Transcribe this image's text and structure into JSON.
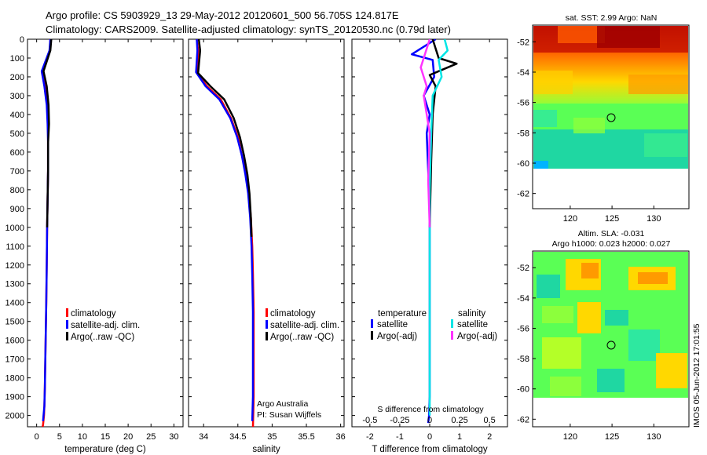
{
  "header": {
    "title_line1": "Argo profile: CS 5903929_13 29-May-2012 20120601_500 56.705S 124.817E",
    "title_line2": "Climatology: CARS2009. Satellite-adjusted climatology: synTS_20120530.nc (0.79d later)"
  },
  "colors": {
    "climatology": "#ff0000",
    "satellite": "#0000ff",
    "argo": "#000000",
    "sal_satellite": "#00e5e5",
    "sal_argo": "#ff33ff"
  },
  "depth_ticks": [
    "0",
    "100",
    "200",
    "300",
    "400",
    "500",
    "600",
    "700",
    "800",
    "900",
    "1000",
    "1100",
    "1200",
    "1300",
    "1400",
    "1500",
    "1600",
    "1700",
    "1800",
    "1900",
    "2000"
  ],
  "panels": {
    "temperature": {
      "xlabel": "temperature (deg C)",
      "xticks": [
        "0",
        "5",
        "10",
        "15",
        "20",
        "25",
        "30"
      ],
      "legend": [
        "climatology",
        "satellite-adj. clim.",
        "Argo(..raw -QC)"
      ]
    },
    "salinity": {
      "xlabel": "salinity",
      "xticks": [
        "34",
        "34.5",
        "35",
        "35.5",
        "36"
      ],
      "legend": [
        "climatology",
        "satellite-adj. clim.",
        "Argo(..raw -QC)"
      ],
      "credit1": "Argo Australia",
      "credit2": "PI: Susan Wijffels"
    },
    "difference": {
      "xlabel": "T difference from climatology",
      "xticks": [
        "-2",
        "-1",
        "0",
        "1",
        "2"
      ],
      "s_label": "S difference from climatology",
      "s_ticks": [
        "-0.5",
        "-0.25",
        "0",
        "0.25",
        "0.5"
      ],
      "legend_temperature_title": "temperature",
      "legend_salinity_title": "salinity",
      "legend_temperature": [
        "satellite",
        "Argo(-adj)"
      ],
      "legend_salinity": [
        "satellite",
        "Argo(-adj)"
      ]
    }
  },
  "maps": {
    "sst_title": "sat. SST: 2.99 Argo: NaN",
    "sla_title1": "Altim. SLA: -0.031",
    "sla_title2": "Argo h1000: 0.023 h2000: 0.027",
    "yticks": [
      "-52",
      "-54",
      "-56",
      "-58",
      "-60",
      "-62"
    ],
    "xticks": [
      "120",
      "125",
      "130"
    ]
  },
  "footer": {
    "stamp": "IMOS 05-Jun-2012 17:01:55"
  },
  "chart_data": [
    {
      "type": "line",
      "name": "temperature-profile",
      "xlabel": "temperature (deg C)",
      "ylabel": "",
      "xlim": [
        -2,
        32
      ],
      "ylim": [
        2060,
        0
      ],
      "series": [
        {
          "name": "climatology",
          "color": "#ff0000",
          "x": [
            3.0,
            2.9,
            1.2,
            1.8,
            2.3,
            2.5,
            2.5,
            2.5,
            2.4,
            2.3,
            2.2,
            2.1,
            2.0,
            1.9,
            1.8,
            1.7,
            1.6,
            1.4,
            1.3
          ],
          "y": [
            0,
            60,
            180,
            250,
            350,
            450,
            550,
            700,
            850,
            1000,
            1200,
            1400,
            1550,
            1700,
            1850,
            1950,
            2000,
            2050,
            2060
          ]
        },
        {
          "name": "satellite-adj. clim.",
          "color": "#0000ff",
          "x": [
            3.0,
            2.8,
            1.1,
            1.7,
            2.2,
            2.4,
            2.5,
            2.5,
            2.4,
            2.3,
            2.2,
            2.1,
            2.0,
            1.9,
            1.8,
            1.7,
            1.5,
            1.4
          ],
          "y": [
            0,
            60,
            170,
            250,
            350,
            450,
            550,
            700,
            850,
            1000,
            1200,
            1400,
            1550,
            1700,
            1850,
            1950,
            2000,
            2030
          ]
        },
        {
          "name": "Argo(..raw -QC)",
          "color": "#000000",
          "x": [
            3.2,
            3.0,
            1.5,
            2.2,
            2.6,
            2.7,
            2.5,
            2.5,
            2.4,
            2.3
          ],
          "y": [
            0,
            60,
            170,
            250,
            350,
            450,
            550,
            700,
            850,
            1000
          ]
        }
      ]
    },
    {
      "type": "line",
      "name": "salinity-profile",
      "xlabel": "salinity",
      "ylabel": "",
      "xlim": [
        33.78,
        36.05
      ],
      "ylim": [
        2060,
        0
      ],
      "series": [
        {
          "name": "climatology",
          "color": "#ff0000",
          "x": [
            33.9,
            33.92,
            33.9,
            34.05,
            34.25,
            34.4,
            34.5,
            34.56,
            34.62,
            34.66,
            34.69,
            34.71,
            34.72,
            34.73,
            34.73,
            34.73,
            34.72
          ],
          "y": [
            0,
            60,
            180,
            250,
            320,
            420,
            520,
            620,
            720,
            820,
            950,
            1100,
            1250,
            1450,
            1700,
            1900,
            2060
          ]
        },
        {
          "name": "satellite-adj. clim.",
          "color": "#0000ff",
          "x": [
            33.9,
            33.91,
            33.89,
            34.03,
            34.23,
            34.39,
            34.49,
            34.56,
            34.61,
            34.65,
            34.68,
            34.7,
            34.71,
            34.72,
            34.72,
            34.72,
            34.71
          ],
          "y": [
            0,
            60,
            175,
            250,
            320,
            420,
            520,
            620,
            720,
            820,
            950,
            1100,
            1250,
            1450,
            1700,
            1900,
            2030
          ]
        },
        {
          "name": "Argo(..raw -QC)",
          "color": "#000000",
          "x": [
            33.93,
            33.95,
            33.92,
            34.1,
            34.3,
            34.44,
            34.53,
            34.59,
            34.64,
            34.67,
            34.69,
            34.7
          ],
          "y": [
            0,
            60,
            180,
            250,
            320,
            420,
            520,
            620,
            720,
            820,
            950,
            1050
          ]
        }
      ]
    },
    {
      "type": "line",
      "name": "difference-profile",
      "xlabel": "T difference from climatology",
      "ylabel": "",
      "xlim": [
        -2.6,
        2.6
      ],
      "ylim": [
        2060,
        0
      ],
      "series": [
        {
          "name": "satellite",
          "group": "temperature",
          "color": "#0000ff",
          "x": [
            0.2,
            -0.6,
            0.1,
            0.15,
            -0.2,
            0.0,
            -0.1,
            -0.05,
            0.0,
            0.0,
            0.0,
            0.0,
            0.0,
            0.0,
            -0.02,
            -0.05
          ],
          "y": [
            0,
            80,
            110,
            200,
            300,
            400,
            500,
            700,
            900,
            1100,
            1300,
            1500,
            1700,
            1900,
            2000,
            2040
          ]
        },
        {
          "name": "Argo(-adj)",
          "group": "temperature",
          "color": "#000000",
          "x": [
            0.1,
            0.3,
            0.9,
            0.3,
            0.0,
            0.2,
            0.1,
            0.05,
            0.0
          ],
          "y": [
            0,
            100,
            130,
            170,
            190,
            250,
            400,
            650,
            1000
          ]
        },
        {
          "name": "satellite",
          "group": "salinity",
          "color": "#00e5e5",
          "x": [
            0.5,
            0.6,
            0.3,
            0.4,
            0.1,
            0.05,
            0.0,
            0.0,
            0.0,
            0.0,
            0.0
          ],
          "y": [
            0,
            60,
            110,
            200,
            300,
            500,
            800,
            1200,
            1600,
            1900,
            2000
          ]
        },
        {
          "name": "Argo(-adj)",
          "group": "salinity",
          "color": "#ff33ff",
          "x": [
            0.0,
            -0.3,
            -0.1,
            -0.2,
            0.0,
            -0.05,
            0.0
          ],
          "y": [
            0,
            150,
            250,
            300,
            500,
            750,
            1000
          ]
        }
      ]
    }
  ]
}
